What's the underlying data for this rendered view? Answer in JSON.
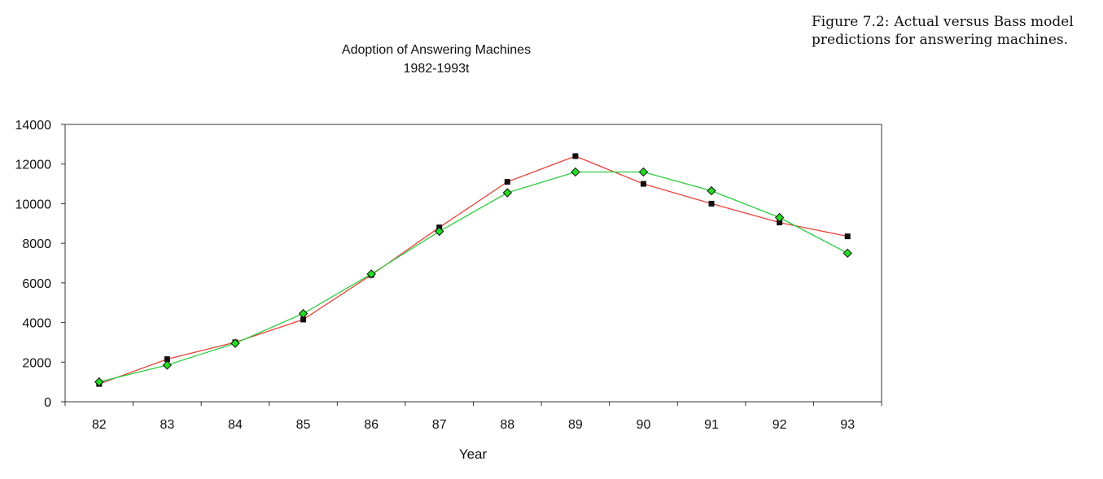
{
  "caption": {
    "label": "Figure 7.2:",
    "text": "Actual versus Bass model predictions for answering machines."
  },
  "chart_data": {
    "type": "line",
    "title": "Adoption of Answering Machines",
    "subtitle": "1982-1993t",
    "xlabel": "Year",
    "ylabel": "",
    "categories": [
      "82",
      "83",
      "84",
      "85",
      "86",
      "87",
      "88",
      "89",
      "90",
      "91",
      "92",
      "93"
    ],
    "ylim": [
      0,
      14000
    ],
    "yticks": [
      0,
      2000,
      4000,
      6000,
      8000,
      10000,
      12000,
      14000
    ],
    "grid": false,
    "legend": "none",
    "series": [
      {
        "values": [
          900,
          2150,
          3000,
          4150,
          6400,
          8800,
          11100,
          12400,
          11000,
          10000,
          9050,
          8350
        ],
        "line_color": "#e8453c",
        "marker": "square",
        "marker_color": "#111111"
      },
      {
        "values": [
          1000,
          1850,
          2950,
          4450,
          6450,
          8600,
          10550,
          11600,
          11600,
          10650,
          9300,
          7500
        ],
        "line_color": "#2ecc40",
        "marker": "diamond",
        "marker_color": "#22dd22"
      }
    ]
  }
}
